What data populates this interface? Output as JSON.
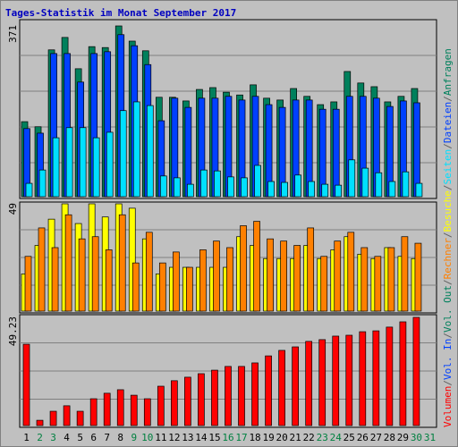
{
  "chart_data": {
    "type": "bar",
    "title": "Tages-Statistik im Monat September 2017",
    "categories": [
      "1",
      "2",
      "3",
      "4",
      "5",
      "6",
      "7",
      "8",
      "9",
      "10",
      "11",
      "12",
      "13",
      "14",
      "15",
      "16",
      "17",
      "18",
      "19",
      "20",
      "21",
      "22",
      "23",
      "24",
      "25",
      "26",
      "27",
      "28",
      "29",
      "30",
      "31"
    ],
    "label_colors": [
      "#000000",
      "#008040",
      "#008040",
      "#000000",
      "#000000",
      "#000000",
      "#000000",
      "#000000",
      "#008040",
      "#008040",
      "#000000",
      "#000000",
      "#000000",
      "#000000",
      "#000000",
      "#008040",
      "#008040",
      "#000000",
      "#000000",
      "#000000",
      "#000000",
      "#000000",
      "#008040",
      "#008040",
      "#000000",
      "#000000",
      "#000000",
      "#000000",
      "#000000",
      "#008040",
      "#008040"
    ],
    "panels": [
      {
        "ylim": [
          0,
          371
        ],
        "yticks": [
          371
        ],
        "series": [
          {
            "name": "Anfragen",
            "color": "#00805c",
            "values": [
              163,
              152,
              319,
              346,
              278,
              326,
              324,
              371,
              338,
              317,
              216,
              216,
              208,
              233,
              237,
              227,
              221,
              243,
              214,
              210,
              235,
              218,
              200,
              206,
              272,
              247,
              239,
              206,
              218,
              235,
              null
            ]
          },
          {
            "name": "Dateien",
            "color": "#0040ff",
            "values": [
              148,
              138,
              311,
              311,
              249,
              311,
              315,
              352,
              328,
              287,
              165,
              214,
              194,
              214,
              214,
              218,
              210,
              218,
              200,
              194,
              210,
              210,
              190,
              190,
              218,
              218,
              214,
              196,
              208,
              204,
              null
            ]
          },
          {
            "name": "Seiten",
            "color": "#00e0ff",
            "values": [
              29,
              58,
              128,
              150,
              150,
              128,
              140,
              187,
              206,
              198,
              45,
              41,
              27,
              58,
              56,
              43,
              41,
              68,
              33,
              31,
              47,
              33,
              27,
              25,
              80,
              62,
              52,
              33,
              54,
              29,
              null
            ]
          }
        ]
      },
      {
        "ylim": [
          0,
          49
        ],
        "yticks": [
          49
        ],
        "series": [
          {
            "name": "Besuche",
            "color": "#ffff00",
            "values": [
              17,
              30,
              42,
              49,
              40,
              49,
              43,
              49,
              47,
              33,
              17,
              20,
              20,
              20,
              20,
              20,
              34,
              30,
              24,
              24,
              24,
              30,
              24,
              28,
              34,
              26,
              24,
              29,
              25,
              24,
              null
            ]
          },
          {
            "name": "Rechner",
            "color": "#ff8000",
            "values": [
              25,
              38,
              29,
              44,
              33,
              34,
              28,
              44,
              22,
              36,
              22,
              27,
              20,
              28,
              32,
              29,
              39,
              41,
              33,
              32,
              30,
              38,
              25,
              32,
              36,
              29,
              25,
              29,
              34,
              31,
              null
            ]
          }
        ]
      },
      {
        "ylim": [
          0,
          49.23
        ],
        "yticks": [
          49.23
        ],
        "series": [
          {
            "name": "Volumen",
            "color": "#ff0000",
            "values": [
              37.0,
              2.4,
              6.5,
              9.0,
              6.5,
              12.2,
              14.7,
              16.3,
              13.8,
              12.2,
              17.9,
              20.4,
              22.0,
              23.6,
              25.2,
              26.9,
              26.9,
              28.5,
              31.7,
              34.2,
              35.8,
              38.3,
              39.1,
              40.7,
              41.1,
              42.7,
              43.1,
              44.8,
              47.2,
              49.23,
              null
            ]
          }
        ]
      }
    ],
    "extra_labels": [
      {
        "text": "Vol. In",
        "color": "#0040ff"
      },
      {
        "text": "Vol. Out",
        "color": "#00805c"
      }
    ],
    "legend_separator": "/",
    "separator_color": "#606060"
  }
}
